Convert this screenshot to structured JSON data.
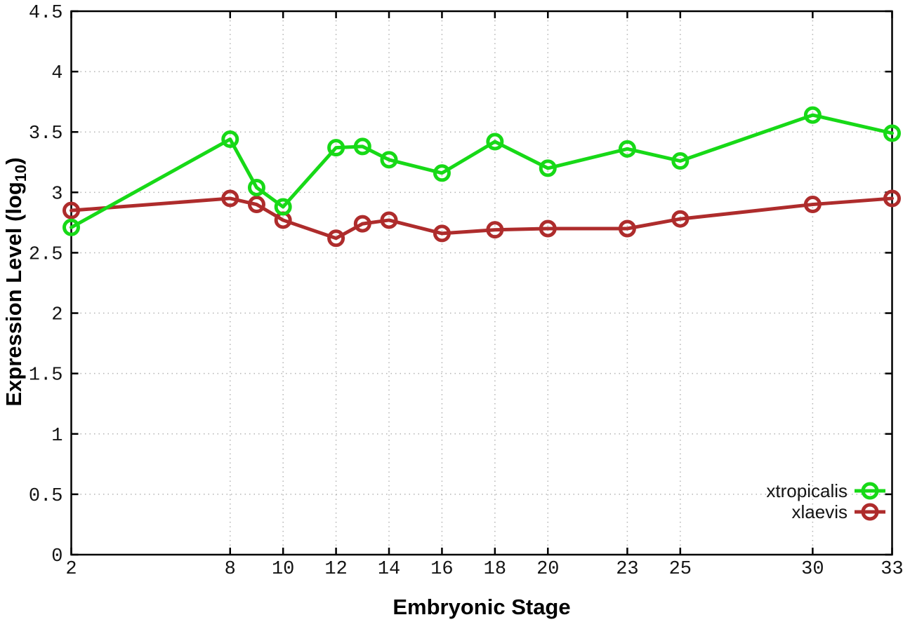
{
  "chart_data": {
    "type": "line",
    "title": "",
    "xlabel": "Embryonic Stage",
    "ylabel": "Expression Level (log10)",
    "ylabel_parts": {
      "pre": "Expression Level (log",
      "sub": "10",
      "post": ")"
    },
    "xlim": [
      2,
      33
    ],
    "ylim": [
      0,
      4.5
    ],
    "grid": true,
    "legend_position": "bottom-right",
    "x_ticks": [
      {
        "value": 2,
        "label": "2"
      },
      {
        "value": 8,
        "label": "8"
      },
      {
        "value": 10,
        "label": "10"
      },
      {
        "value": 12,
        "label": "12"
      },
      {
        "value": 14,
        "label": "14"
      },
      {
        "value": 16,
        "label": "16"
      },
      {
        "value": 18,
        "label": "18"
      },
      {
        "value": 20,
        "label": "20"
      },
      {
        "value": 23,
        "label": "23"
      },
      {
        "value": 25,
        "label": "25"
      },
      {
        "value": 30,
        "label": "30"
      },
      {
        "value": 33,
        "label": "33"
      }
    ],
    "y_ticks": [
      {
        "value": 0,
        "label": "0"
      },
      {
        "value": 0.5,
        "label": "0.5"
      },
      {
        "value": 1,
        "label": "1"
      },
      {
        "value": 1.5,
        "label": "1.5"
      },
      {
        "value": 2,
        "label": "2"
      },
      {
        "value": 2.5,
        "label": "2.5"
      },
      {
        "value": 3,
        "label": "3"
      },
      {
        "value": 3.5,
        "label": "3.5"
      },
      {
        "value": 4,
        "label": "4"
      },
      {
        "value": 4.5,
        "label": "4.5"
      }
    ],
    "x": [
      2,
      8,
      9,
      10,
      12,
      13,
      14,
      16,
      18,
      20,
      23,
      25,
      30,
      33
    ],
    "series": [
      {
        "name": "xtropicalis",
        "color": "#17d917",
        "marker": "open-circle",
        "values": [
          2.71,
          3.44,
          3.04,
          2.88,
          3.37,
          3.38,
          3.27,
          3.16,
          3.42,
          3.2,
          3.36,
          3.26,
          3.64,
          3.49
        ]
      },
      {
        "name": "xlaevis",
        "color": "#ae2c2c",
        "marker": "open-circle",
        "values": [
          2.85,
          2.95,
          2.9,
          2.77,
          2.62,
          2.74,
          2.77,
          2.66,
          2.69,
          2.7,
          2.7,
          2.78,
          2.9,
          2.95
        ]
      }
    ]
  }
}
